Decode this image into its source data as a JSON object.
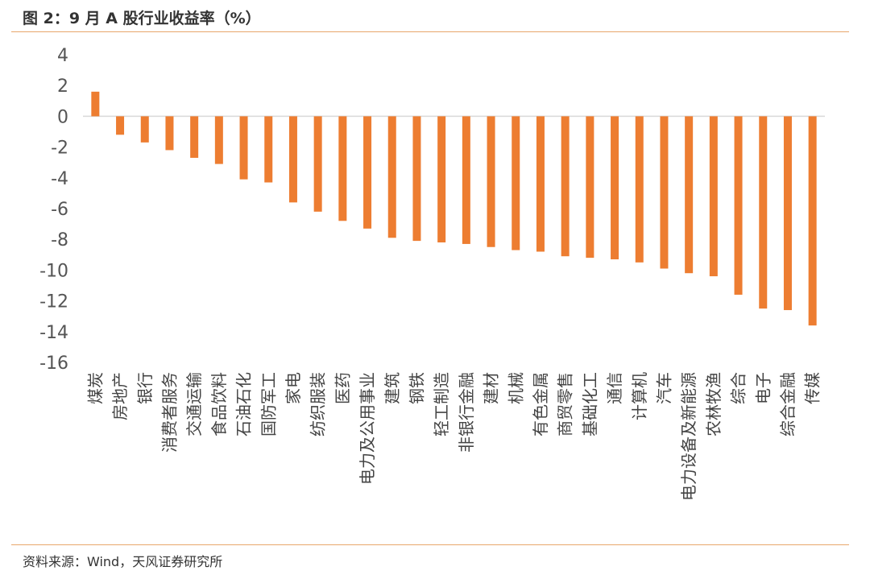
{
  "header": {
    "title": "图 2：9 月 A 股行业收益率（%）"
  },
  "footer": {
    "source": "资料来源：Wind，天风证券研究所"
  },
  "chart_data": {
    "type": "bar",
    "title": "图 2：9 月 A 股行业收益率（%）",
    "xlabel": "",
    "ylabel": "",
    "ylim": [
      -16,
      4
    ],
    "yticks": [
      4,
      2,
      0,
      -2,
      -4,
      -6,
      -8,
      -10,
      -12,
      -14,
      -16
    ],
    "grid": false,
    "legend": "none",
    "bar_color": "#ed7d31",
    "categories": [
      "煤炭",
      "房地产",
      "银行",
      "消费者服务",
      "交通运输",
      "食品饮料",
      "石油石化",
      "国防军工",
      "家电",
      "纺织服装",
      "医药",
      "电力及公用事业",
      "建筑",
      "钢铁",
      "轻工制造",
      "非银行金融",
      "建材",
      "机械",
      "有色金属",
      "商贸零售",
      "基础化工",
      "通信",
      "计算机",
      "汽车",
      "电力设备及新能源",
      "农林牧渔",
      "综合",
      "电子",
      "综合金融",
      "传媒"
    ],
    "values": [
      1.6,
      -1.2,
      -1.7,
      -2.2,
      -2.7,
      -3.1,
      -4.1,
      -4.3,
      -5.6,
      -6.2,
      -6.8,
      -7.3,
      -7.9,
      -8.1,
      -8.2,
      -8.3,
      -8.5,
      -8.7,
      -8.8,
      -9.1,
      -9.2,
      -9.3,
      -9.5,
      -9.9,
      -10.2,
      -10.4,
      -11.6,
      -12.5,
      -12.6,
      -13.6
    ]
  }
}
